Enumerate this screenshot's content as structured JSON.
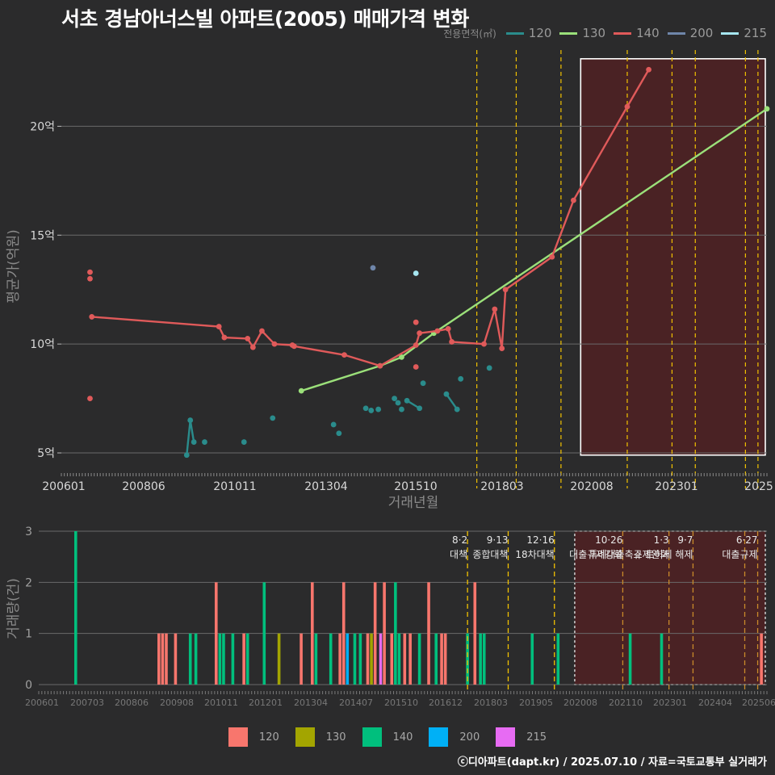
{
  "title": "서초 경남아너스빌 아파트(2005) 매매가격 변화",
  "legend_title": "전용면적(㎡)",
  "source": "ⓒ디아파트(dapt.kr) / 2025.07.10 / 자료=국토교통부 실거래가",
  "colors": {
    "background": "#2b2b2c",
    "grid": "#6a6a6a",
    "s120_line": "#2a8c8c",
    "s130_line": "#9be07a",
    "s140_line": "#e05a5a",
    "s200_line": "#6f86aa",
    "s215_line": "#a6e6f0",
    "b120": "#f8766d",
    "b130": "#a3a500",
    "b140": "#00bf7d",
    "b200": "#00b0f6",
    "b215": "#e76bf3",
    "policy": "#f2c200",
    "highlight_fill": "#4a2224"
  },
  "series_legend": [
    {
      "name": "120",
      "color": "#2a8c8c"
    },
    {
      "name": "130",
      "color": "#9be07a"
    },
    {
      "name": "140",
      "color": "#e05a5a"
    },
    {
      "name": "200",
      "color": "#6f86aa"
    },
    {
      "name": "215",
      "color": "#a6e6f0"
    }
  ],
  "bar_legend": [
    {
      "name": "120",
      "color": "#f8766d"
    },
    {
      "name": "130",
      "color": "#a3a500"
    },
    {
      "name": "140",
      "color": "#00bf7d"
    },
    {
      "name": "200",
      "color": "#00b0f6"
    },
    {
      "name": "215",
      "color": "#e76bf3"
    }
  ],
  "chart_data": [
    {
      "type": "line",
      "title": "서초 경남아너스빌 아파트(2005) 매매가격 변화",
      "xlabel": "거래년월",
      "ylabel": "평균가(억원)",
      "xlim": [
        2006.0,
        2025.7
      ],
      "ylim": [
        4.0,
        23.5
      ],
      "x_ticks": [
        "200601",
        "200806",
        "201011",
        "201304",
        "201510",
        "201803",
        "202008",
        "202301",
        "2025"
      ],
      "y_ticks": [
        {
          "v": 5,
          "label": "5억"
        },
        {
          "v": 10,
          "label": "10억"
        },
        {
          "v": 15,
          "label": "15억"
        },
        {
          "v": 20,
          "label": "20억"
        }
      ],
      "policy_x": [
        2017.6,
        2018.7,
        2019.95,
        2021.8,
        2023.05,
        2023.7,
        2025.1,
        2025.45
      ],
      "highlight": {
        "x0": 2020.5,
        "x1": 2025.7,
        "y0": 4.9,
        "y1": 23.1
      },
      "series": [
        {
          "name": "120",
          "points": [
            {
              "x": 2009.5,
              "y": 4.9
            },
            {
              "x": 2009.6,
              "y": 6.5
            },
            {
              "x": 2009.7,
              "y": 5.5
            },
            {
              "x": 2010.0,
              "y": 5.5
            },
            {
              "x": 2011.1,
              "y": 5.5
            },
            {
              "x": 2011.9,
              "y": 6.6
            },
            {
              "x": 2013.6,
              "y": 6.3
            },
            {
              "x": 2013.75,
              "y": 5.9
            },
            {
              "x": 2014.5,
              "y": 7.05
            },
            {
              "x": 2014.65,
              "y": 6.95
            },
            {
              "x": 2014.85,
              "y": 7.0
            },
            {
              "x": 2015.3,
              "y": 7.5
            },
            {
              "x": 2015.4,
              "y": 7.3
            },
            {
              "x": 2015.5,
              "y": 7.0
            },
            {
              "x": 2015.65,
              "y": 7.4
            },
            {
              "x": 2016.0,
              "y": 7.05
            },
            {
              "x": 2016.1,
              "y": 8.2
            },
            {
              "x": 2016.75,
              "y": 7.7
            },
            {
              "x": 2017.05,
              "y": 7.0
            },
            {
              "x": 2017.15,
              "y": 8.4
            },
            {
              "x": 2017.95,
              "y": 8.9
            }
          ],
          "lines": [
            [
              0,
              1,
              2
            ],
            [
              14,
              15
            ],
            [
              17,
              18
            ]
          ]
        },
        {
          "name": "130",
          "points": [
            {
              "x": 2012.7,
              "y": 7.85
            },
            {
              "x": 2014.9,
              "y": 9.0
            },
            {
              "x": 2015.5,
              "y": 9.4
            },
            {
              "x": 2016.4,
              "y": 10.5
            },
            {
              "x": 2025.7,
              "y": 20.8
            }
          ],
          "lines": [
            [
              0,
              1,
              2,
              3,
              4
            ]
          ]
        },
        {
          "name": "140",
          "points": [
            {
              "x": 2006.8,
              "y": 13.3
            },
            {
              "x": 2006.8,
              "y": 13.0
            },
            {
              "x": 2006.8,
              "y": 7.5
            },
            {
              "x": 2006.85,
              "y": 11.25
            },
            {
              "x": 2010.4,
              "y": 10.8
            },
            {
              "x": 2010.55,
              "y": 10.3
            },
            {
              "x": 2011.2,
              "y": 10.25
            },
            {
              "x": 2011.35,
              "y": 9.85
            },
            {
              "x": 2011.6,
              "y": 10.6
            },
            {
              "x": 2011.95,
              "y": 10.0
            },
            {
              "x": 2012.45,
              "y": 9.95
            },
            {
              "x": 2012.5,
              "y": 9.9
            },
            {
              "x": 2013.9,
              "y": 9.5
            },
            {
              "x": 2014.9,
              "y": 9.0
            },
            {
              "x": 2015.9,
              "y": 9.95
            },
            {
              "x": 2015.9,
              "y": 11.0
            },
            {
              "x": 2015.9,
              "y": 8.95
            },
            {
              "x": 2016.0,
              "y": 10.5
            },
            {
              "x": 2016.5,
              "y": 10.6
            },
            {
              "x": 2016.8,
              "y": 10.7
            },
            {
              "x": 2016.9,
              "y": 10.1
            },
            {
              "x": 2017.8,
              "y": 10.0
            },
            {
              "x": 2018.1,
              "y": 11.6
            },
            {
              "x": 2018.3,
              "y": 9.8
            },
            {
              "x": 2018.4,
              "y": 12.5
            },
            {
              "x": 2019.7,
              "y": 14.0
            },
            {
              "x": 2020.3,
              "y": 16.6
            },
            {
              "x": 2021.8,
              "y": 20.9
            },
            {
              "x": 2022.4,
              "y": 22.6
            }
          ],
          "lines": [
            [
              3,
              4,
              5,
              6,
              7,
              8,
              9,
              10,
              11,
              12,
              13,
              14,
              17,
              18,
              19,
              20,
              21,
              22,
              23,
              24,
              25,
              26,
              27,
              28
            ]
          ]
        },
        {
          "name": "200",
          "points": [
            {
              "x": 2014.7,
              "y": 13.5
            }
          ],
          "lines": []
        },
        {
          "name": "215",
          "points": [
            {
              "x": 2015.9,
              "y": 13.25
            }
          ],
          "lines": []
        }
      ]
    },
    {
      "type": "bar",
      "xlabel": "",
      "ylabel": "거래량(건)",
      "xlim": [
        2006.0,
        2025.7
      ],
      "ylim": [
        0,
        3
      ],
      "x_ticks": [
        "200601",
        "200703",
        "200806",
        "200908",
        "201011",
        "201201",
        "201304",
        "201407",
        "201510",
        "201612",
        "201803",
        "201905",
        "202008",
        "202110",
        "202301",
        "202404",
        "202506"
      ],
      "y_ticks": [
        0,
        1,
        2,
        3
      ],
      "highlight": {
        "x0": 2020.5,
        "x1": 2025.7,
        "y0": 0,
        "y1": 3
      },
      "policies": [
        {
          "x": 2017.6,
          "date": "8·2",
          "label": "대책"
        },
        {
          "x": 2018.7,
          "date": "9·13",
          "label": "종합대책"
        },
        {
          "x": 2019.95,
          "date": "12·16",
          "label": "18차대책"
        },
        {
          "x": 2021.8,
          "date": "10·26",
          "label": "대출규제강화"
        },
        {
          "x": 2023.05,
          "date": "1·3",
          "label": "규제완화"
        },
        {
          "x": 2023.7,
          "date": "9·7",
          "label": "특례대출축소 토허제 해제"
        },
        {
          "x": 2025.1,
          "date": "",
          "label": ""
        },
        {
          "x": 2025.45,
          "date": "6·27",
          "label": "대출규제"
        }
      ],
      "bars": [
        {
          "x": 2007.0,
          "v": 3,
          "s": "140"
        },
        {
          "x": 2009.25,
          "v": 1,
          "s": "120"
        },
        {
          "x": 2009.35,
          "v": 1,
          "s": "120"
        },
        {
          "x": 2009.45,
          "v": 1,
          "s": "120"
        },
        {
          "x": 2009.7,
          "v": 1,
          "s": "120"
        },
        {
          "x": 2010.1,
          "v": 1,
          "s": "140"
        },
        {
          "x": 2010.25,
          "v": 1,
          "s": "140"
        },
        {
          "x": 2010.8,
          "v": 2,
          "s": "120"
        },
        {
          "x": 2010.9,
          "v": 1,
          "s": "140"
        },
        {
          "x": 2011.0,
          "v": 1,
          "s": "140"
        },
        {
          "x": 2011.25,
          "v": 1,
          "s": "140"
        },
        {
          "x": 2011.55,
          "v": 1,
          "s": "120"
        },
        {
          "x": 2011.65,
          "v": 1,
          "s": "140"
        },
        {
          "x": 2012.1,
          "v": 2,
          "s": "140"
        },
        {
          "x": 2012.5,
          "v": 1,
          "s": "130"
        },
        {
          "x": 2013.1,
          "v": 1,
          "s": "120"
        },
        {
          "x": 2013.4,
          "v": 2,
          "s": "120"
        },
        {
          "x": 2013.5,
          "v": 1,
          "s": "140"
        },
        {
          "x": 2013.9,
          "v": 1,
          "s": "140"
        },
        {
          "x": 2014.15,
          "v": 1,
          "s": "120"
        },
        {
          "x": 2014.25,
          "v": 2,
          "s": "120"
        },
        {
          "x": 2014.35,
          "v": 1,
          "s": "200"
        },
        {
          "x": 2014.55,
          "v": 1,
          "s": "140"
        },
        {
          "x": 2014.7,
          "v": 1,
          "s": "140"
        },
        {
          "x": 2014.9,
          "v": 1,
          "s": "120"
        },
        {
          "x": 2015.0,
          "v": 1,
          "s": "130"
        },
        {
          "x": 2015.1,
          "v": 2,
          "s": "120"
        },
        {
          "x": 2015.25,
          "v": 1,
          "s": "215"
        },
        {
          "x": 2015.35,
          "v": 2,
          "s": "120"
        },
        {
          "x": 2015.55,
          "v": 1,
          "s": "120"
        },
        {
          "x": 2015.65,
          "v": 2,
          "s": "140"
        },
        {
          "x": 2015.75,
          "v": 1,
          "s": "140"
        },
        {
          "x": 2015.9,
          "v": 1,
          "s": "120"
        },
        {
          "x": 2016.05,
          "v": 1,
          "s": "120"
        },
        {
          "x": 2016.3,
          "v": 1,
          "s": "140"
        },
        {
          "x": 2016.55,
          "v": 2,
          "s": "120"
        },
        {
          "x": 2016.75,
          "v": 1,
          "s": "140"
        },
        {
          "x": 2016.9,
          "v": 1,
          "s": "120"
        },
        {
          "x": 2017.0,
          "v": 1,
          "s": "120"
        },
        {
          "x": 2017.6,
          "v": 1,
          "s": "140"
        },
        {
          "x": 2017.8,
          "v": 2,
          "s": "120"
        },
        {
          "x": 2017.95,
          "v": 1,
          "s": "140"
        },
        {
          "x": 2018.05,
          "v": 1,
          "s": "140"
        },
        {
          "x": 2019.35,
          "v": 1,
          "s": "140"
        },
        {
          "x": 2020.05,
          "v": 1,
          "s": "140"
        },
        {
          "x": 2022.0,
          "v": 1,
          "s": "140"
        },
        {
          "x": 2022.85,
          "v": 1,
          "s": "140"
        },
        {
          "x": 2025.55,
          "v": 1,
          "s": "120"
        }
      ]
    }
  ]
}
